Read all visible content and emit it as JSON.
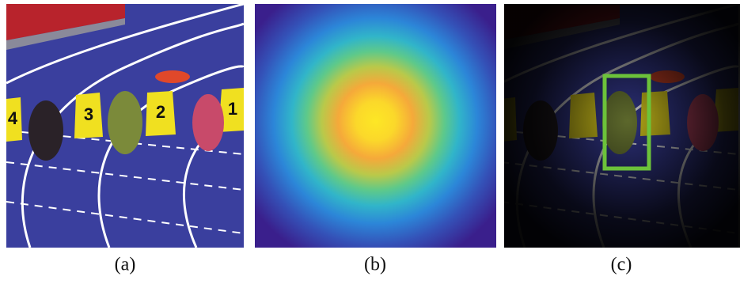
{
  "panels": [
    {
      "caption": "(a)",
      "lane_numbers": [
        "4",
        "3",
        "2",
        "1"
      ]
    },
    {
      "caption": "(b)"
    },
    {
      "caption": "(c)"
    }
  ]
}
